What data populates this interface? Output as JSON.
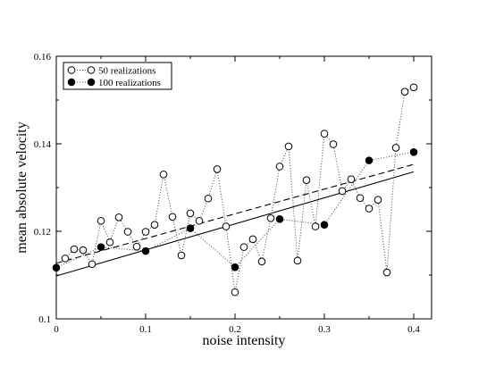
{
  "chart_data": {
    "type": "scatter",
    "xlabel": "noise intensity",
    "ylabel": "mean absolute velocity",
    "xlim": [
      0,
      0.42
    ],
    "ylim": [
      0.1,
      0.16
    ],
    "xticks": [
      0,
      0.1,
      0.2,
      0.3,
      0.4
    ],
    "xtick_labels": [
      "0",
      "0.1",
      "0.2",
      "0.3",
      "0.4"
    ],
    "yticks": [
      0.1,
      0.12,
      0.14,
      0.16
    ],
    "ytick_labels": [
      "0.1",
      "0.12",
      "0.14",
      "0.16"
    ],
    "legend_position": "top-left",
    "grid": false,
    "series": [
      {
        "name": "50 realizations",
        "marker": "open-circle",
        "line": "dotted",
        "x": [
          0.01,
          0.02,
          0.03,
          0.04,
          0.05,
          0.06,
          0.07,
          0.08,
          0.09,
          0.1,
          0.11,
          0.12,
          0.13,
          0.14,
          0.15,
          0.16,
          0.17,
          0.18,
          0.19,
          0.2,
          0.21,
          0.22,
          0.23,
          0.24,
          0.25,
          0.26,
          0.27,
          0.28,
          0.29,
          0.3,
          0.31,
          0.32,
          0.33,
          0.34,
          0.35,
          0.36,
          0.37,
          0.38,
          0.39,
          0.4
        ],
        "y": [
          0.1138,
          0.1159,
          0.1157,
          0.1125,
          0.1224,
          0.1175,
          0.1232,
          0.1199,
          0.1165,
          0.1199,
          0.1215,
          0.133,
          0.1233,
          0.1145,
          0.1241,
          0.1224,
          0.1275,
          0.1342,
          0.1211,
          0.1061,
          0.1164,
          0.1182,
          0.1131,
          0.123,
          0.1348,
          0.1394,
          0.1133,
          0.1317,
          0.1211,
          0.1423,
          0.1399,
          0.1292,
          0.1319,
          0.1276,
          0.1252,
          0.1272,
          0.1106,
          0.1391,
          0.1519,
          0.1529
        ]
      },
      {
        "name": "100 realizations",
        "marker": "filled-circle",
        "line": "dotted",
        "x": [
          0,
          0.05,
          0.1,
          0.15,
          0.2,
          0.25,
          0.3,
          0.35,
          0.4
        ],
        "y": [
          0.1117,
          0.1164,
          0.1155,
          0.1207,
          0.1118,
          0.1228,
          0.1215,
          0.1362,
          0.1381
        ]
      }
    ],
    "fit_lines": [
      {
        "style": "solid",
        "x": [
          0,
          0.4
        ],
        "y": [
          0.1098,
          0.1336
        ]
      },
      {
        "style": "dashed",
        "x": [
          0,
          0.4
        ],
        "y": [
          0.1127,
          0.1353
        ]
      }
    ]
  },
  "colors": {
    "ink": "#000000",
    "marker_fill_open": "#ffffff",
    "dotted_line": "#444444"
  }
}
